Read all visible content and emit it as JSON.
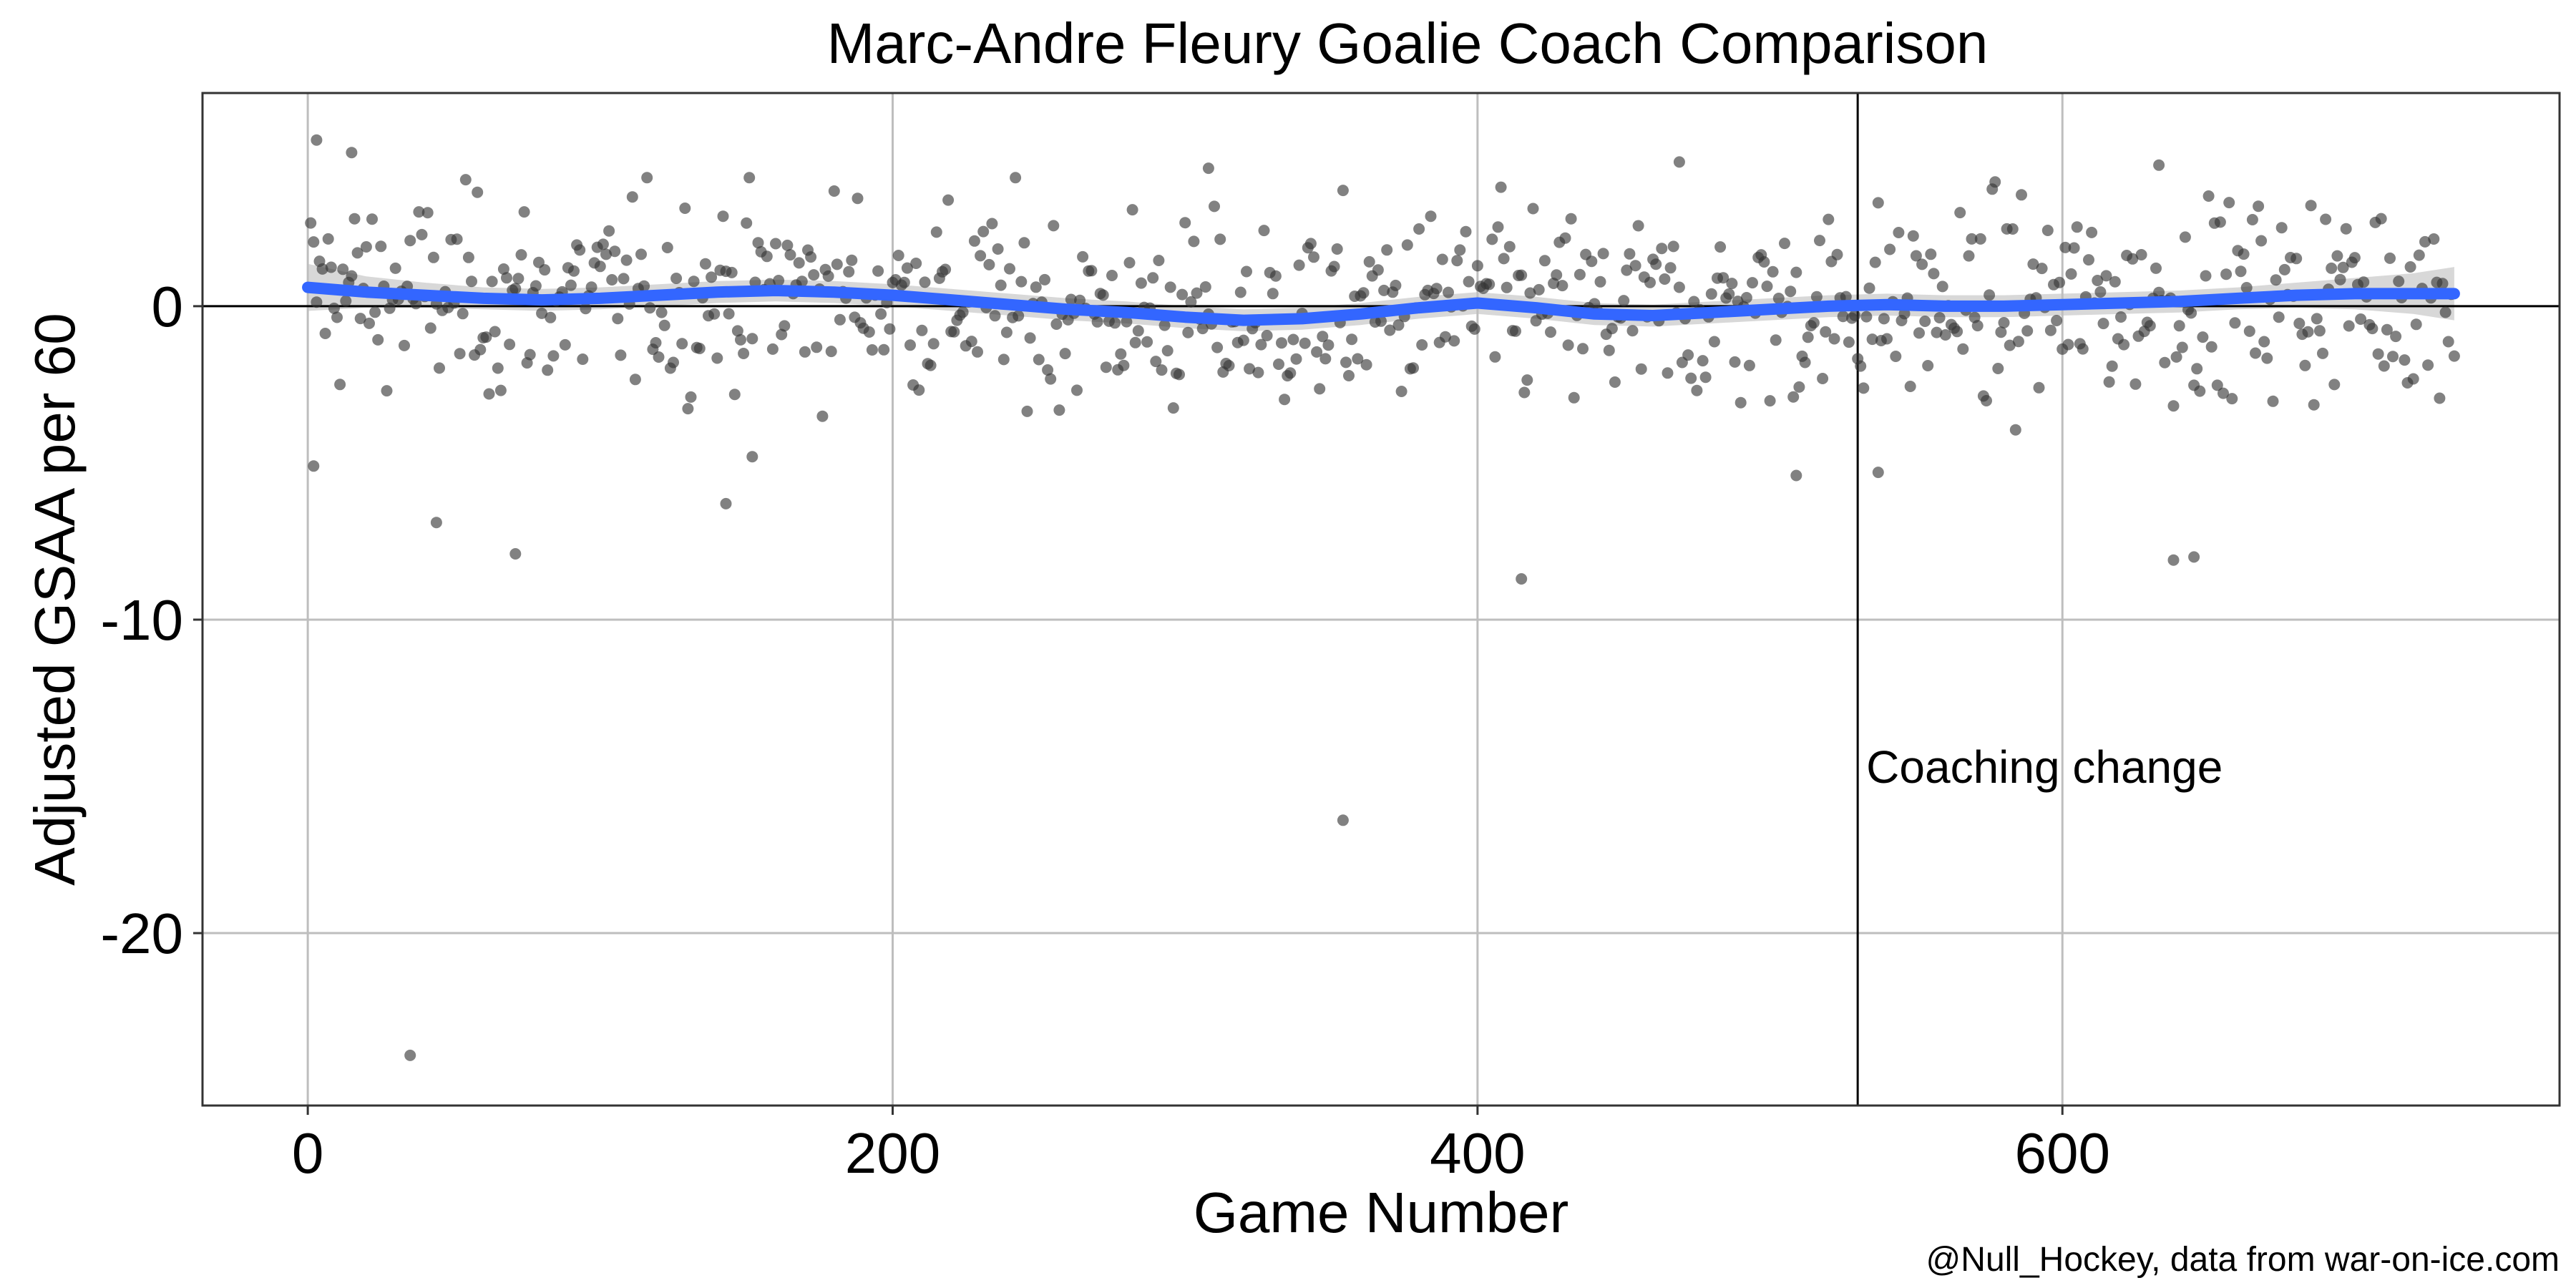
{
  "chart_data": {
    "type": "scatter",
    "title": "Marc-Andre Fleury Goalie Coach Comparison",
    "xlabel": "Game Number",
    "ylabel": "Adjusted GSAA per 60",
    "caption": "@Null_Hockey, data from war-on-ice.com",
    "xlim": [
      -36,
      770
    ],
    "ylim": [
      -25.5,
      6.8
    ],
    "xticks": [
      0,
      200,
      400,
      600
    ],
    "yticks": [
      0,
      -10,
      -20
    ],
    "grid": true,
    "point_color": "#333333",
    "smooth_color": "#3366FF",
    "ribbon_color": "#BEBEBE",
    "reference_line": {
      "axis": "y",
      "value": 0
    },
    "annotation": {
      "x": 530,
      "label": "Coaching change"
    },
    "outliers": [
      {
        "x": 35,
        "y": -23.9
      },
      {
        "x": 354,
        "y": -16.4
      },
      {
        "x": 415,
        "y": -8.7
      },
      {
        "x": 71,
        "y": -7.9
      },
      {
        "x": 44,
        "y": -6.9
      },
      {
        "x": 638,
        "y": -8.1
      },
      {
        "x": 645,
        "y": -8.0
      },
      {
        "x": 2,
        "y": -5.1
      },
      {
        "x": 143,
        "y": -6.3
      },
      {
        "x": 152,
        "y": -4.8
      },
      {
        "x": 537,
        "y": -5.3
      },
      {
        "x": 509,
        "y": -5.4
      },
      {
        "x": 3,
        "y": 5.3
      },
      {
        "x": 15,
        "y": 4.9
      },
      {
        "x": 469,
        "y": 4.6
      },
      {
        "x": 633,
        "y": 4.5
      },
      {
        "x": 308,
        "y": 4.4
      }
    ],
    "smooth": {
      "x": [
        0,
        20,
        40,
        60,
        80,
        100,
        120,
        140,
        160,
        180,
        200,
        220,
        240,
        260,
        280,
        300,
        320,
        340,
        360,
        380,
        400,
        420,
        440,
        460,
        480,
        500,
        520,
        540,
        560,
        580,
        600,
        620,
        640,
        660,
        680,
        700,
        720,
        734
      ],
      "y": [
        0.6,
        0.45,
        0.35,
        0.25,
        0.2,
        0.25,
        0.35,
        0.45,
        0.5,
        0.45,
        0.35,
        0.2,
        0.05,
        -0.1,
        -0.2,
        -0.35,
        -0.45,
        -0.4,
        -0.25,
        -0.05,
        0.1,
        -0.05,
        -0.25,
        -0.3,
        -0.2,
        -0.1,
        0.0,
        0.05,
        0.0,
        0.0,
        0.05,
        0.1,
        0.15,
        0.25,
        0.35,
        0.4,
        0.4,
        0.4
      ],
      "se": [
        0.75,
        0.5,
        0.4,
        0.35,
        0.35,
        0.35,
        0.35,
        0.35,
        0.35,
        0.35,
        0.35,
        0.35,
        0.35,
        0.35,
        0.35,
        0.35,
        0.35,
        0.35,
        0.35,
        0.35,
        0.35,
        0.35,
        0.35,
        0.35,
        0.35,
        0.35,
        0.35,
        0.35,
        0.35,
        0.35,
        0.35,
        0.35,
        0.35,
        0.35,
        0.4,
        0.5,
        0.65,
        0.85
      ]
    }
  }
}
